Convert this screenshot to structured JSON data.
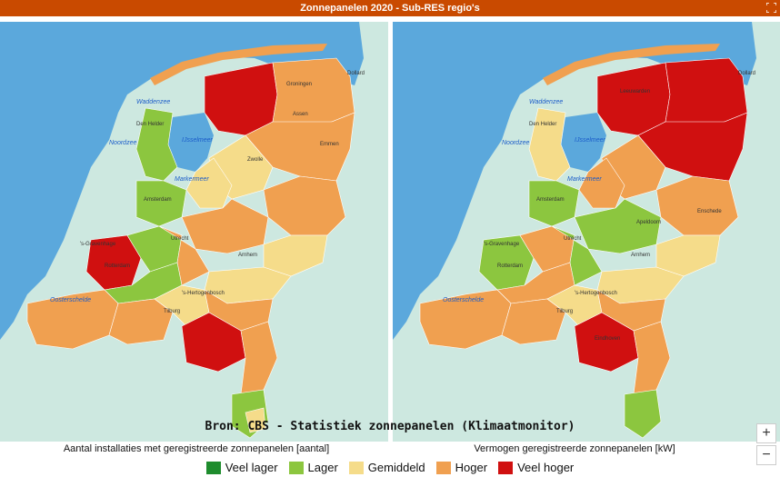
{
  "title": "Zonnepanelen 2020 - Sub-RES regio's",
  "source": "Bron: CBS - Statistiek zonnepanelen (Klimaatmonitor)",
  "captions": {
    "left": "Aantal installaties met geregistreerde zonnepanelen [aantal]",
    "right": "Vermogen geregistreerde zonnepanelen [kW]"
  },
  "zoom": {
    "in_label": "+",
    "out_label": "−"
  },
  "legend": [
    {
      "label": "Veel lager",
      "color": "#1e8c2d"
    },
    {
      "label": "Lager",
      "color": "#8cc63f"
    },
    {
      "label": "Gemiddeld",
      "color": "#f5dc8a"
    },
    {
      "label": "Hoger",
      "color": "#f0a050"
    },
    {
      "label": "Veel hoger",
      "color": "#d01010"
    }
  ],
  "colors": {
    "sea": "#5ba8dc",
    "land": "#cde8e0",
    "title_bar": "#c94a00"
  },
  "places": {
    "waddenzee": "Waddenzee",
    "noordzee": "Noordzee",
    "ijsselmeer": "IJsselmeer",
    "markermeer": "Markermeer",
    "dollard": "Dollard",
    "groningen": "Groningen",
    "assen": "Assen",
    "emmen": "Emmen",
    "zwolle": "Zwolle",
    "amsterdam": "Amsterdam",
    "utrecht": "Utrecht",
    "arnhem": "Arnhem",
    "rotterdam": "Rotterdam",
    "s_gravenhage": "'s-Gravenhage",
    "s_hertogenbosch": "'s-Hertogenbosch",
    "tilburg": "Tilburg",
    "eindhoven": "Eindhoven",
    "oosterschelde": "Oosterschelde",
    "den_helder": "Den Helder",
    "apeldoorn": "Apeldoorn",
    "enschede": "Enschede",
    "leeuwarden": "Leeuwarden"
  }
}
